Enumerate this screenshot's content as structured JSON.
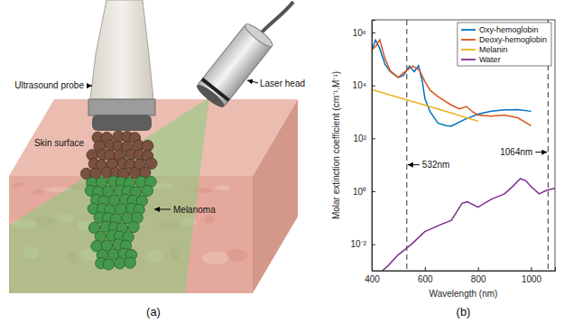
{
  "captions": [
    "(a)",
    "(b)"
  ],
  "diagram": {
    "labels": {
      "probe": "Ultrasound probe",
      "laser": "Laser head",
      "skin": "Skin surface",
      "lesion": "Melanoma"
    }
  },
  "chart_data": {
    "type": "line",
    "x_label": "Wavelength (nm)",
    "y_label": "Molar extinction coefficient (cm⁻¹.M⁻¹)",
    "log": "y",
    "grid": false,
    "legend": "top-right",
    "xlim": [
      400,
      1090
    ],
    "xticks": [
      400,
      600,
      800,
      1000
    ],
    "ylim": [
      0.001,
      3000000
    ],
    "yticks": [
      {
        "value": 0.01,
        "label": "10⁻²"
      },
      {
        "value": 1,
        "label": "10⁰"
      },
      {
        "value": 100,
        "label": "10²"
      },
      {
        "value": 10000,
        "label": "10⁴"
      },
      {
        "value": 1000000,
        "label": "10⁶"
      }
    ],
    "annotations": [
      {
        "x": 532,
        "y": 10,
        "label": "532nm"
      },
      {
        "x": 1064,
        "y": 30,
        "label": "1064nm"
      }
    ],
    "series": [
      {
        "name": "Oxy-hemoglobin",
        "color": "#0072BD",
        "x": [
          400,
          414,
          430,
          450,
          470,
          500,
          520,
          542,
          560,
          576,
          590,
          600,
          620,
          650,
          680,
          700,
          750,
          800,
          850,
          900,
          950,
          1000
        ],
        "values": [
          200000,
          520000,
          250000,
          62000,
          33000,
          20000,
          24000,
          54000,
          33000,
          56000,
          15000,
          3200,
          1000,
          370,
          300,
          290,
          520,
          816,
          1058,
          1198,
          1214,
          1050
        ]
      },
      {
        "name": "Deoxy-hemoglobin",
        "color": "#D95319",
        "x": [
          400,
          415,
          430,
          450,
          470,
          500,
          520,
          555,
          580,
          600,
          620,
          650,
          680,
          700,
          730,
          757,
          780,
          800,
          850,
          900,
          950,
          1000
        ],
        "values": [
          220000,
          300000,
          530000,
          100000,
          35000,
          20000,
          30000,
          54000,
          37000,
          14000,
          6500,
          3750,
          2400,
          1800,
          1300,
          1600,
          1000,
          760,
          690,
          760,
          600,
          300
        ]
      },
      {
        "name": "Melanin",
        "color": "#EDB120",
        "x": [
          400,
          500,
          600,
          700,
          800
        ],
        "values": [
          7000,
          3500,
          1800,
          900,
          450
        ]
      },
      {
        "name": "Water",
        "color": "#7E2F8E",
        "x": [
          440,
          460,
          500,
          550,
          600,
          650,
          700,
          740,
          760,
          800,
          850,
          900,
          930,
          960,
          980,
          1000,
          1030,
          1060,
          1090
        ],
        "values": [
          0.001,
          0.0015,
          0.004,
          0.01,
          0.03,
          0.05,
          0.08,
          0.35,
          0.4,
          0.25,
          0.5,
          0.8,
          1.5,
          3,
          2.5,
          1.5,
          0.8,
          1.1,
          1.3
        ]
      }
    ]
  }
}
